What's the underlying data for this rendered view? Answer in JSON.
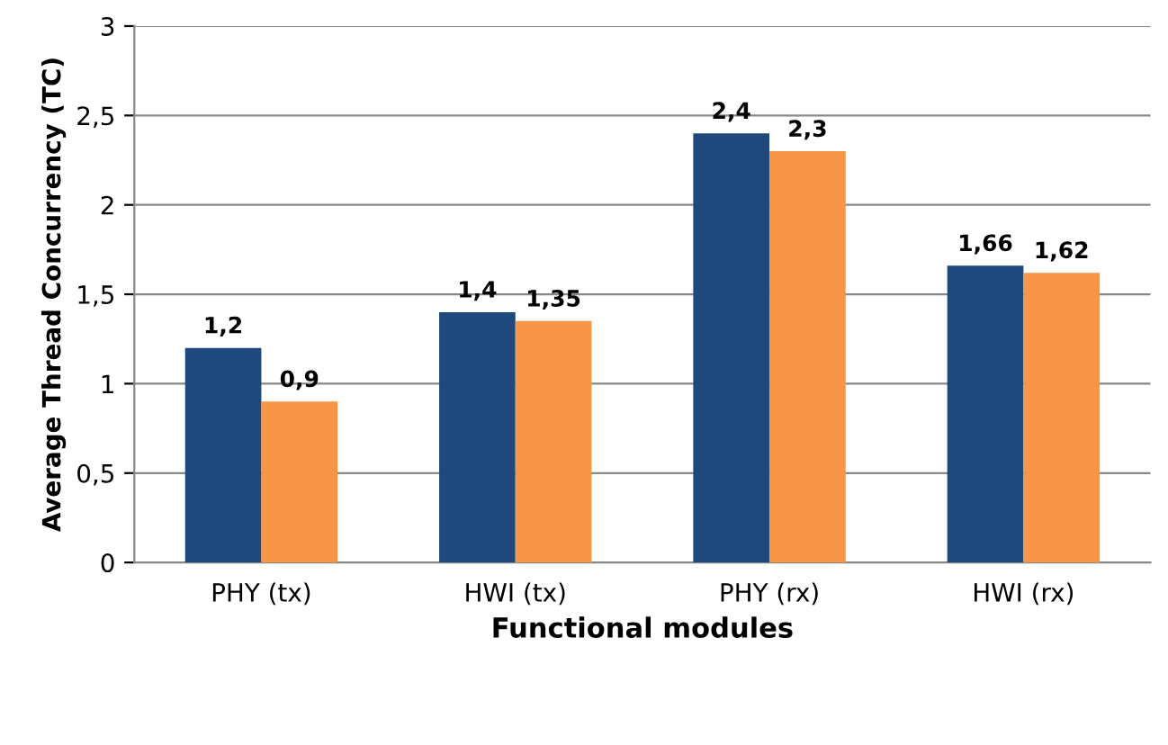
{
  "chart_data": {
    "type": "bar",
    "xlabel": "Functional modules",
    "ylabel": "Average Thread Concurrency (TC)",
    "categories": [
      "PHY (tx)",
      "HWI (tx)",
      "PHY (rx)",
      "HWI (rx)"
    ],
    "series": [
      {
        "color": "#1f497d",
        "values": [
          1.2,
          1.4,
          2.4,
          1.66
        ],
        "value_labels": [
          "1,2",
          "1,4",
          "2,4",
          "1,66"
        ]
      },
      {
        "color": "#f79646",
        "values": [
          0.9,
          1.35,
          2.3,
          1.62
        ],
        "value_labels": [
          "0,9",
          "1,35",
          "2,3",
          "1,62"
        ]
      }
    ],
    "ylim": [
      0,
      3
    ],
    "yticks": [
      0,
      {
        "value": 0.5,
        "label": "0,5"
      },
      1,
      {
        "value": 1.5,
        "label": "1,5"
      },
      2,
      {
        "value": 2.5,
        "label": "2,5"
      },
      3
    ],
    "grid": "y"
  }
}
